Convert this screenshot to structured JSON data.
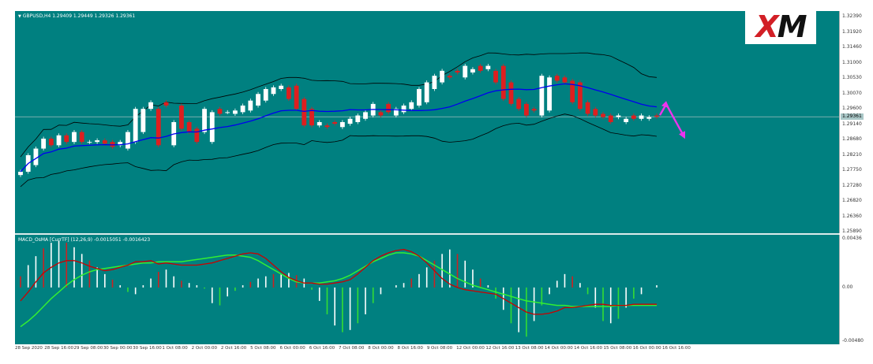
{
  "chart_info": {
    "symbol_label": "GBPUSD,H4  1.29409 1.29449 1.29326 1.29361",
    "indicator_label": "MACD_OsMA [CurrTF] (12,26,9) -0.0015051 -0.0016423",
    "current_price": "1.29361",
    "logo_text": "XM",
    "logo_accent_letter": "X",
    "logo_rest": "M"
  },
  "colors": {
    "background": "#008080",
    "bull_candle": "#ffffff",
    "bear_candle": "#dd1f1f",
    "bands": "#000000",
    "moving_average": "#0000ee",
    "macd_line": "#cc0000",
    "signal_line": "#33ee33",
    "arrow": "#ee33ee",
    "hist_up": "#ffffff",
    "hist_down_red": "#cc2222",
    "hist_green": "#33dd33"
  },
  "price_axis": {
    "ticks": [
      "1.32390",
      "1.31920",
      "1.31460",
      "1.31000",
      "1.30530",
      "1.30070",
      "1.29600",
      "1.29140",
      "1.28680",
      "1.28210",
      "1.27750",
      "1.27280",
      "1.26820",
      "1.26360",
      "1.25890"
    ]
  },
  "macd_axis": {
    "ticks": [
      "0.00436",
      "0.00",
      "-0.00480"
    ]
  },
  "time_axis": {
    "labels": [
      "28 Sep 2020",
      "28 Sep 16:00",
      "29 Sep 08:00",
      "30 Sep 00:00",
      "30 Sep 16:00",
      "1 Oct 08:00",
      "2 Oct 00:00",
      "2 Oct 16:00",
      "5 Oct 08:00",
      "6 Oct 00:00",
      "6 Oct 16:00",
      "7 Oct 08:00",
      "8 Oct 00:00",
      "8 Oct 16:00",
      "9 Oct 08:00",
      "12 Oct 00:00",
      "12 Oct 16:00",
      "13 Oct 08:00",
      "14 Oct 00:00",
      "14 Oct 16:00",
      "15 Oct 08:00",
      "16 Oct 00:00",
      "16 Oct 16:00"
    ]
  },
  "chart_data": [
    {
      "type": "candlestick",
      "title": "GBPUSD,H4",
      "ylim": [
        1.2589,
        1.3239
      ],
      "open": [
        1.276,
        1.277,
        1.279,
        1.284,
        1.287,
        1.285,
        1.288,
        1.286,
        1.289,
        1.286,
        1.286,
        1.2865,
        1.286,
        1.285,
        1.284,
        1.286,
        1.289,
        1.296,
        1.296,
        1.298,
        1.285,
        1.297,
        1.292,
        1.29,
        1.289,
        1.286,
        1.296,
        1.295,
        1.2945,
        1.295,
        1.2955,
        1.297,
        1.2985,
        1.3005,
        1.302,
        1.3025,
        1.303,
        1.299,
        1.296,
        1.291,
        1.291,
        1.292,
        1.2905,
        1.2915,
        1.292,
        1.293,
        1.294,
        1.295,
        1.2975,
        1.294,
        1.295,
        1.296,
        1.297,
        1.298,
        1.302,
        1.304,
        1.306,
        1.3075,
        1.3055,
        1.307,
        1.309,
        1.308,
        1.3075,
        1.309,
        1.304,
        1.299,
        1.2975,
        1.296,
        1.294,
        1.2955,
        1.306,
        1.3055,
        1.3045,
        1.304,
        1.298,
        1.296,
        1.2945,
        1.294,
        1.2935,
        1.292,
        1.294,
        1.293,
        1.293,
        1.294
      ],
      "close": [
        1.277,
        1.282,
        1.284,
        1.287,
        1.285,
        1.288,
        1.286,
        1.289,
        1.286,
        1.286,
        1.2865,
        1.2855,
        1.2845,
        1.286,
        1.289,
        1.296,
        1.296,
        1.298,
        1.285,
        1.297,
        1.292,
        1.29,
        1.289,
        1.286,
        1.296,
        1.295,
        1.2945,
        1.295,
        1.2955,
        1.297,
        1.2985,
        1.3005,
        1.302,
        1.3025,
        1.303,
        1.299,
        1.296,
        1.291,
        1.291,
        1.292,
        1.2905,
        1.2915,
        1.292,
        1.293,
        1.294,
        1.295,
        1.2975,
        1.294,
        1.295,
        1.296,
        1.297,
        1.298,
        1.302,
        1.304,
        1.306,
        1.3075,
        1.3055,
        1.307,
        1.309,
        1.308,
        1.3075,
        1.309,
        1.304,
        1.299,
        1.2975,
        1.296,
        1.294,
        1.2955,
        1.306,
        1.3055,
        1.3045,
        1.304,
        1.298,
        1.296,
        1.2945,
        1.294,
        1.2935,
        1.292,
        1.294,
        1.293,
        1.293,
        1.294,
        1.2935,
        1.2936
      ]
    },
    {
      "type": "line",
      "title": "MACD_OsMA",
      "ylim": [
        -0.0048,
        0.00436
      ],
      "histogram": [
        0.001,
        0.002,
        0.0028,
        0.0035,
        0.004,
        0.0042,
        0.004,
        0.0036,
        0.003,
        0.0024,
        0.0018,
        0.0012,
        0.0007,
        0.0002,
        -0.0004,
        -0.0006,
        0.0002,
        0.0008,
        0.0014,
        0.0016,
        0.001,
        0.0006,
        0.0004,
        0.0002,
        -0.0001,
        -0.0014,
        -0.0016,
        -0.0008,
        -0.0003,
        0.0002,
        0.0005,
        0.0008,
        0.001,
        0.0012,
        0.0012,
        0.0013,
        0.0011,
        0.0008,
        -0.0002,
        -0.0012,
        -0.0024,
        -0.0034,
        -0.004,
        -0.0038,
        -0.0032,
        -0.0024,
        -0.0014,
        -0.0006,
        0.0,
        0.0002,
        0.0004,
        0.0008,
        0.0012,
        0.0018,
        0.0024,
        0.003,
        0.0034,
        0.003,
        0.0024,
        0.0016,
        0.0008,
        0.0002,
        -0.001,
        -0.002,
        -0.0032,
        -0.004,
        -0.0044,
        -0.003,
        -0.0016,
        -0.0006,
        0.0006,
        0.0012,
        0.001,
        0.0004,
        -0.0006,
        -0.0018,
        -0.003,
        -0.0032,
        -0.0028,
        -0.0018,
        -0.001,
        -0.0006,
        0.0,
        0.0002
      ],
      "macd": [
        -0.0012,
        -0.0004,
        0.0005,
        0.0013,
        0.0018,
        0.0022,
        0.0024,
        0.0024,
        0.0022,
        0.0019,
        0.0017,
        0.0015,
        0.0016,
        0.0018,
        0.002,
        0.0023,
        0.0023,
        0.0024,
        0.0021,
        0.0022,
        0.0021,
        0.002,
        0.002,
        0.002,
        0.0021,
        0.0022,
        0.0024,
        0.0026,
        0.0028,
        0.003,
        0.0031,
        0.003,
        0.0026,
        0.002,
        0.0014,
        0.0009,
        0.0006,
        0.0004,
        0.0004,
        0.0003,
        0.0003,
        0.0004,
        0.0005,
        0.0007,
        0.0012,
        0.0018,
        0.0024,
        0.0028,
        0.0031,
        0.0033,
        0.0034,
        0.0032,
        0.0028,
        0.0022,
        0.0015,
        0.0008,
        0.0003,
        0.0,
        -0.0002,
        -0.0003,
        -0.0004,
        -0.0005,
        -0.0006,
        -0.001,
        -0.0014,
        -0.0018,
        -0.0022,
        -0.0024,
        -0.0024,
        -0.0023,
        -0.0021,
        -0.0018,
        -0.0018,
        -0.0017,
        -0.0016,
        -0.0015,
        -0.0015,
        -0.0016,
        -0.0016,
        -0.0016,
        -0.0015,
        -0.0015,
        -0.0015,
        -0.0015
      ],
      "signal": [
        -0.0035,
        -0.003,
        -0.0024,
        -0.0017,
        -0.001,
        -0.0004,
        0.0002,
        0.0007,
        0.0011,
        0.0014,
        0.0016,
        0.0017,
        0.0018,
        0.0019,
        0.002,
        0.0021,
        0.0022,
        0.0022,
        0.0023,
        0.0023,
        0.0023,
        0.0023,
        0.0024,
        0.0025,
        0.0026,
        0.0027,
        0.0028,
        0.0029,
        0.0029,
        0.0028,
        0.0027,
        0.0024,
        0.002,
        0.0016,
        0.0012,
        0.0008,
        0.0005,
        0.0004,
        0.0004,
        0.0004,
        0.0005,
        0.0006,
        0.0008,
        0.0011,
        0.0015,
        0.0019,
        0.0023,
        0.0026,
        0.0029,
        0.0031,
        0.0031,
        0.003,
        0.0028,
        0.0024,
        0.002,
        0.0016,
        0.0012,
        0.0008,
        0.0005,
        0.0002,
        0.0,
        -0.0002,
        -0.0004,
        -0.0006,
        -0.0008,
        -0.001,
        -0.0012,
        -0.0013,
        -0.0014,
        -0.0015,
        -0.0016,
        -0.0016,
        -0.0017,
        -0.0017,
        -0.0017,
        -0.0017,
        -0.0017,
        -0.0017,
        -0.0016,
        -0.0016,
        -0.0016,
        -0.0016,
        -0.0016,
        -0.0016
      ]
    }
  ]
}
